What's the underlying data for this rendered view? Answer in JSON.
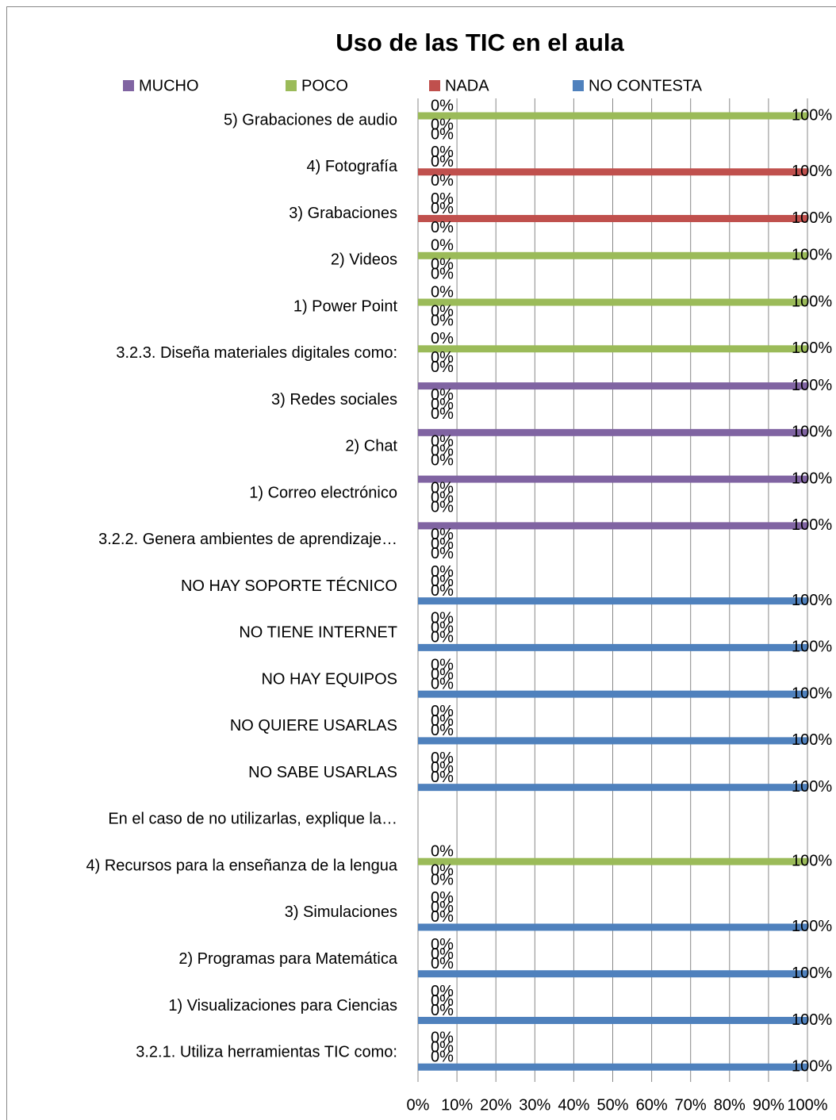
{
  "chart_data": {
    "type": "barh",
    "title": "Uso de las TIC en el aula",
    "categories": [
      "5) Grabaciones de audio",
      "4) Fotografía",
      "3) Grabaciones",
      "2) Videos",
      "1) Power Point",
      "3.2.3. Diseña materiales digitales como:",
      "3) Redes sociales",
      "2) Chat",
      "1) Correo electrónico",
      "3.2.2. Genera ambientes de aprendizaje…",
      "NO HAY SOPORTE TÉCNICO",
      "NO TIENE INTERNET",
      "NO HAY EQUIPOS",
      "NO QUIERE USARLAS",
      "NO SABE USARLAS",
      "En el caso de no utilizarlas, explique la…",
      "4) Recursos para la enseñanza de la lengua",
      "3) Simulaciones",
      "2) Programas para Matemática",
      "1) Visualizaciones para Ciencias",
      "3.2.1. Utiliza herramientas TIC como:"
    ],
    "series": [
      {
        "name": "MUCHO",
        "color": "#8064a2",
        "values": [
          0,
          0,
          0,
          0,
          0,
          0,
          100,
          100,
          100,
          100,
          0,
          0,
          0,
          0,
          0,
          null,
          0,
          0,
          0,
          0,
          0
        ],
        "value_labels": [
          "0%",
          "0%",
          "0%",
          "0%",
          "0%",
          "0%",
          "100%",
          "100%",
          "100%",
          "100%",
          "0%",
          "0%",
          "0%",
          "0%",
          "0%",
          null,
          "0%",
          "0%",
          "0%",
          "0%",
          "0%"
        ]
      },
      {
        "name": "POCO",
        "color": "#9bbb59",
        "values": [
          100,
          0,
          0,
          100,
          100,
          100,
          0,
          0,
          0,
          0,
          0,
          0,
          0,
          0,
          0,
          null,
          100,
          0,
          0,
          0,
          0
        ],
        "value_labels": [
          "100%",
          "0%",
          "0%",
          "100%",
          "100%",
          "100%",
          "0%",
          "0%",
          "0%",
          "0%",
          "0%",
          "0%",
          "0%",
          "0%",
          "0%",
          null,
          "100%",
          "0%",
          "0%",
          "0%",
          "0%"
        ]
      },
      {
        "name": "NADA",
        "color": "#c0504d",
        "values": [
          0,
          100,
          100,
          0,
          0,
          0,
          0,
          0,
          0,
          0,
          0,
          0,
          0,
          0,
          0,
          null,
          0,
          0,
          0,
          0,
          0
        ],
        "value_labels": [
          "0%",
          "100%",
          "100%",
          "0%",
          "0%",
          "0%",
          "0%",
          "0%",
          "0%",
          "0%",
          "0%",
          "0%",
          "0%",
          "0%",
          "0%",
          null,
          "0%",
          "0%",
          "0%",
          "0%",
          "0%"
        ]
      },
      {
        "name": "NO CONTESTA",
        "color": "#4f81bd",
        "values": [
          0,
          0,
          0,
          0,
          0,
          0,
          0,
          0,
          0,
          0,
          100,
          100,
          100,
          100,
          100,
          null,
          0,
          100,
          100,
          100,
          100
        ],
        "value_labels": [
          "0%",
          "0%",
          "0%",
          "0%",
          "0%",
          "0%",
          "0%",
          "0%",
          "0%",
          "0%",
          "100%",
          "100%",
          "100%",
          "100%",
          "100%",
          null,
          "0%",
          "100%",
          "100%",
          "100%",
          "100%"
        ]
      }
    ],
    "xlim": [
      0,
      100
    ],
    "xticks": [
      {
        "value": 0,
        "label": "0%"
      },
      {
        "value": 10,
        "label": "10%"
      },
      {
        "value": 20,
        "label": "20%"
      },
      {
        "value": 30,
        "label": "30%"
      },
      {
        "value": 40,
        "label": "40%"
      },
      {
        "value": 50,
        "label": "50%"
      },
      {
        "value": 60,
        "label": "60%"
      },
      {
        "value": 70,
        "label": "70%"
      },
      {
        "value": 80,
        "label": "80%"
      },
      {
        "value": 90,
        "label": "90%"
      },
      {
        "value": 100,
        "label": "100%"
      }
    ],
    "grid": true
  }
}
